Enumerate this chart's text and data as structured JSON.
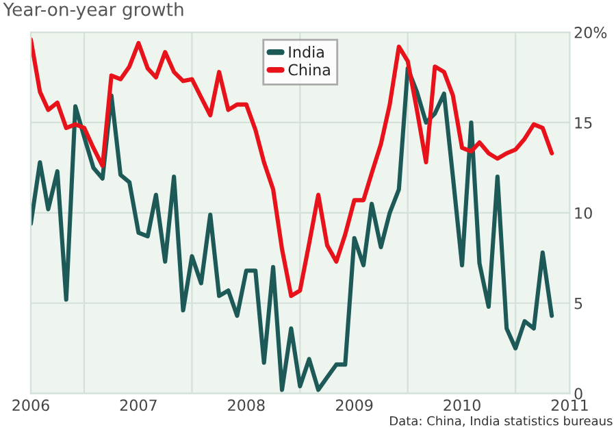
{
  "chart_data": {
    "type": "line",
    "title": "Year-on-year growth",
    "x": [
      "2006-01",
      "2006-02",
      "2006-03",
      "2006-04",
      "2006-05",
      "2006-06",
      "2006-07",
      "2006-08",
      "2006-09",
      "2006-10",
      "2006-11",
      "2006-12",
      "2007-01",
      "2007-02",
      "2007-03",
      "2007-04",
      "2007-05",
      "2007-06",
      "2007-07",
      "2007-08",
      "2007-09",
      "2007-10",
      "2007-11",
      "2007-12",
      "2008-01",
      "2008-02",
      "2008-03",
      "2008-04",
      "2008-05",
      "2008-06",
      "2008-07",
      "2008-08",
      "2008-09",
      "2008-10",
      "2008-11",
      "2008-12",
      "2009-01",
      "2009-02",
      "2009-03",
      "2009-04",
      "2009-05",
      "2009-06",
      "2009-07",
      "2009-08",
      "2009-09",
      "2009-10",
      "2009-11",
      "2009-12",
      "2010-01",
      "2010-02",
      "2010-03",
      "2010-04",
      "2010-05",
      "2010-06",
      "2010-07",
      "2010-08",
      "2010-09",
      "2010-10",
      "2010-11"
    ],
    "series": [
      {
        "name": "India",
        "color": "#1d5a57",
        "values": [
          9.4,
          12.8,
          10.2,
          12.3,
          5.2,
          15.9,
          14.2,
          12.5,
          11.9,
          16.5,
          12.1,
          11.7,
          8.9,
          8.7,
          11.0,
          7.3,
          12.0,
          4.6,
          7.6,
          6.1,
          9.9,
          5.4,
          5.7,
          4.3,
          6.8,
          6.8,
          1.7,
          7.0,
          0.2,
          3.6,
          0.4,
          1.9,
          0.2,
          0.9,
          1.6,
          1.6,
          8.6,
          7.1,
          10.5,
          8.1,
          10.0,
          11.3,
          18.0,
          16.7,
          15.0,
          15.5,
          16.6,
          12.0,
          7.1,
          15.0,
          7.2,
          4.8,
          12.0,
          3.6,
          2.5,
          4.0,
          3.6,
          7.8,
          4.3
        ]
      },
      {
        "name": "China",
        "color": "#e8121a",
        "values": [
          19.6,
          16.7,
          15.7,
          16.1,
          14.7,
          14.9,
          14.7,
          13.6,
          12.6,
          17.6,
          17.4,
          18.1,
          19.4,
          18.0,
          17.5,
          18.9,
          17.8,
          17.3,
          17.4,
          16.4,
          15.4,
          17.8,
          15.7,
          16.0,
          16.0,
          14.6,
          12.8,
          11.3,
          8.0,
          5.4,
          5.7,
          8.3,
          11.0,
          8.2,
          7.3,
          8.8,
          10.7,
          10.7,
          12.2,
          13.8,
          16.0,
          19.2,
          18.4,
          15.7,
          12.8,
          18.1,
          17.8,
          16.5,
          13.6,
          13.4,
          13.9,
          13.3,
          13.0,
          13.3,
          13.5,
          14.1,
          14.9,
          14.7,
          13.3
        ]
      }
    ],
    "xlim": [
      "2006-01",
      "2011-01"
    ],
    "xticks": [
      {
        "value": "2006-01",
        "label": "2006"
      },
      {
        "value": "2007-01",
        "label": "2007"
      },
      {
        "value": "2008-01",
        "label": "2008"
      },
      {
        "value": "2009-01",
        "label": "2009"
      },
      {
        "value": "2010-01",
        "label": "2010"
      },
      {
        "value": "2011-01",
        "label": "2011"
      },
      {
        "value": "2006-07",
        "label": null
      },
      {
        "value": "2007-07",
        "label": null
      },
      {
        "value": "2008-07",
        "label": null
      },
      {
        "value": "2009-07",
        "label": null
      },
      {
        "value": "2010-07",
        "label": null
      }
    ],
    "ylim": [
      0,
      20
    ],
    "yticks": [
      0,
      5,
      10,
      15,
      {
        "value": 20,
        "label": "20%"
      }
    ],
    "grid": true,
    "legend": "top",
    "marker": "none",
    "line_style": "solid",
    "annotations": [
      "Data: China, India statistics bureaus"
    ]
  }
}
